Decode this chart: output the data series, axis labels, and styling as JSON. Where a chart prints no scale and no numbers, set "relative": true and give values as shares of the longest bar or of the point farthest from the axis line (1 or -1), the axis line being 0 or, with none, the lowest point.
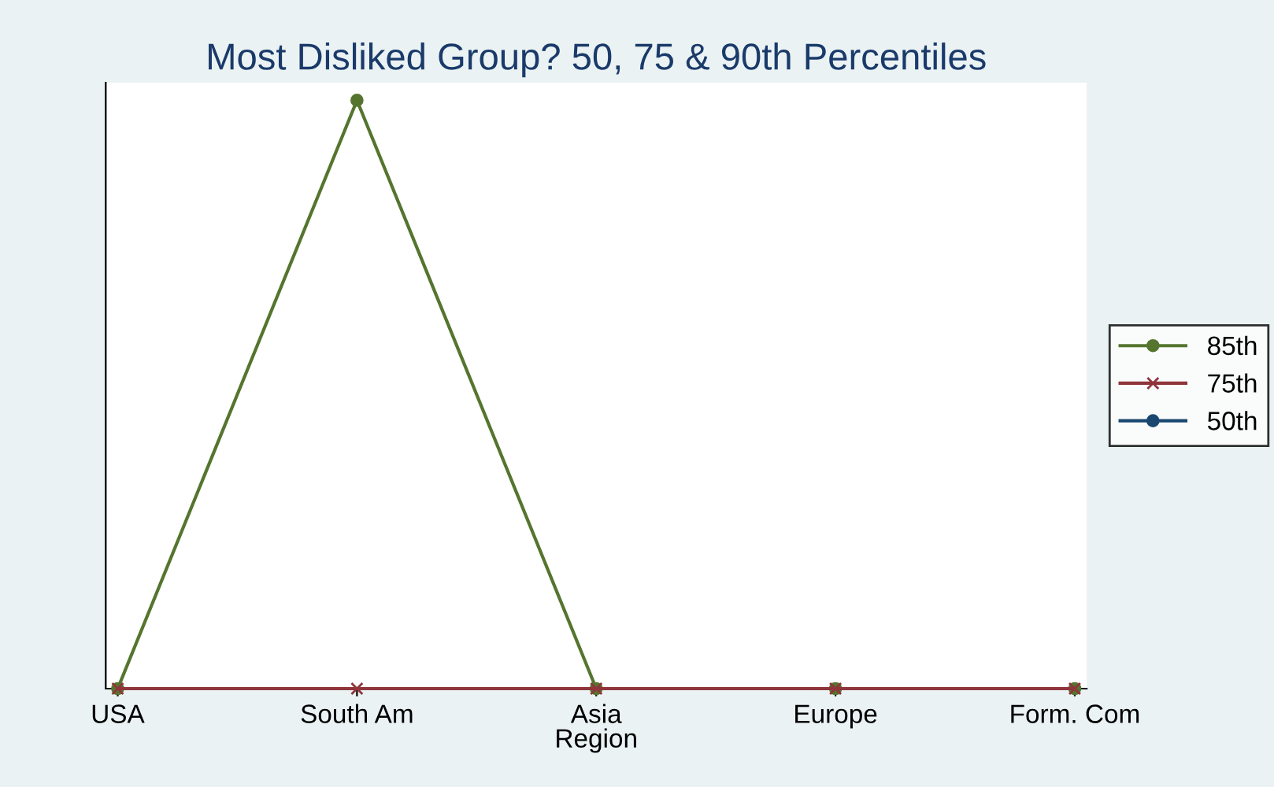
{
  "chart_data": {
    "type": "line",
    "title": "Most Disliked Group? 50, 75 & 90th Percentiles",
    "xlabel": "Region",
    "categories": [
      "USA",
      "South Am",
      "Asia",
      "Europe",
      "Form. Com"
    ],
    "relative": true,
    "legend": "right",
    "series": [
      {
        "name": "85th",
        "color": "#55752f",
        "marker": "circle",
        "values": [
          0,
          1,
          0,
          0,
          0
        ]
      },
      {
        "name": "75th",
        "color": "#90353b",
        "marker": "cross",
        "values": [
          0,
          0,
          0,
          0,
          0
        ]
      },
      {
        "name": "50th",
        "color": "#1a476f",
        "marker": "circle",
        "values": [
          null,
          null,
          null,
          null,
          null
        ]
      }
    ]
  }
}
